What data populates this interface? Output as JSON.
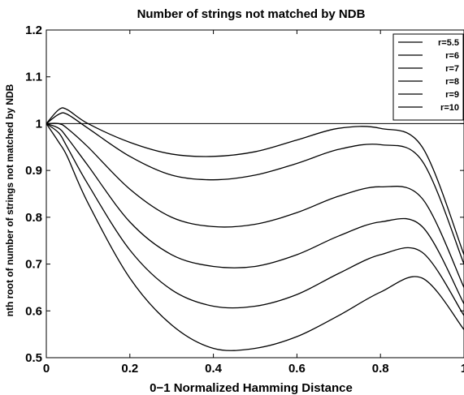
{
  "chart_data": {
    "type": "line",
    "title": "Number of strings not matched by NDB",
    "xlabel": "0−1 Normalized Hamming Distance",
    "ylabel": "nth root of number of strings not matched by NDB",
    "xlim": [
      0,
      1
    ],
    "ylim": [
      0.5,
      1.2
    ],
    "x_ticks": [
      "0",
      "0.2",
      "0.4",
      "0.6",
      "0.8",
      "1"
    ],
    "y_ticks": [
      "0.5",
      "0.6",
      "0.7",
      "0.8",
      "0.9",
      "1",
      "1.1",
      "1.2"
    ],
    "grid": false,
    "legend_position": "top-right",
    "x": [
      0,
      0.03,
      0.05,
      0.1,
      0.2,
      0.3,
      0.4,
      0.5,
      0.6,
      0.7,
      0.8,
      0.9,
      1.0
    ],
    "series": [
      {
        "name": "r=5.5",
        "values": [
          1.0,
          1.03,
          1.03,
          1.0,
          0.96,
          0.935,
          0.93,
          0.94,
          0.965,
          0.99,
          0.99,
          0.95,
          0.72
        ]
      },
      {
        "name": "r=6",
        "values": [
          1.0,
          1.02,
          1.02,
          0.99,
          0.93,
          0.89,
          0.88,
          0.89,
          0.915,
          0.945,
          0.955,
          0.92,
          0.7
        ]
      },
      {
        "name": "r=7",
        "values": [
          1.0,
          1.0,
          0.99,
          0.95,
          0.86,
          0.8,
          0.78,
          0.785,
          0.81,
          0.845,
          0.865,
          0.84,
          0.65
        ]
      },
      {
        "name": "r=8",
        "values": [
          1.0,
          0.99,
          0.97,
          0.91,
          0.79,
          0.72,
          0.695,
          0.695,
          0.72,
          0.76,
          0.79,
          0.78,
          0.615
        ]
      },
      {
        "name": "r=9",
        "values": [
          1.0,
          0.98,
          0.95,
          0.87,
          0.73,
          0.645,
          0.61,
          0.61,
          0.635,
          0.68,
          0.72,
          0.725,
          0.59
        ]
      },
      {
        "name": "r=10",
        "values": [
          1.0,
          0.96,
          0.93,
          0.83,
          0.67,
          0.57,
          0.52,
          0.52,
          0.545,
          0.59,
          0.64,
          0.67,
          0.56
        ]
      }
    ],
    "reference_line": {
      "y": 1.0
    }
  }
}
